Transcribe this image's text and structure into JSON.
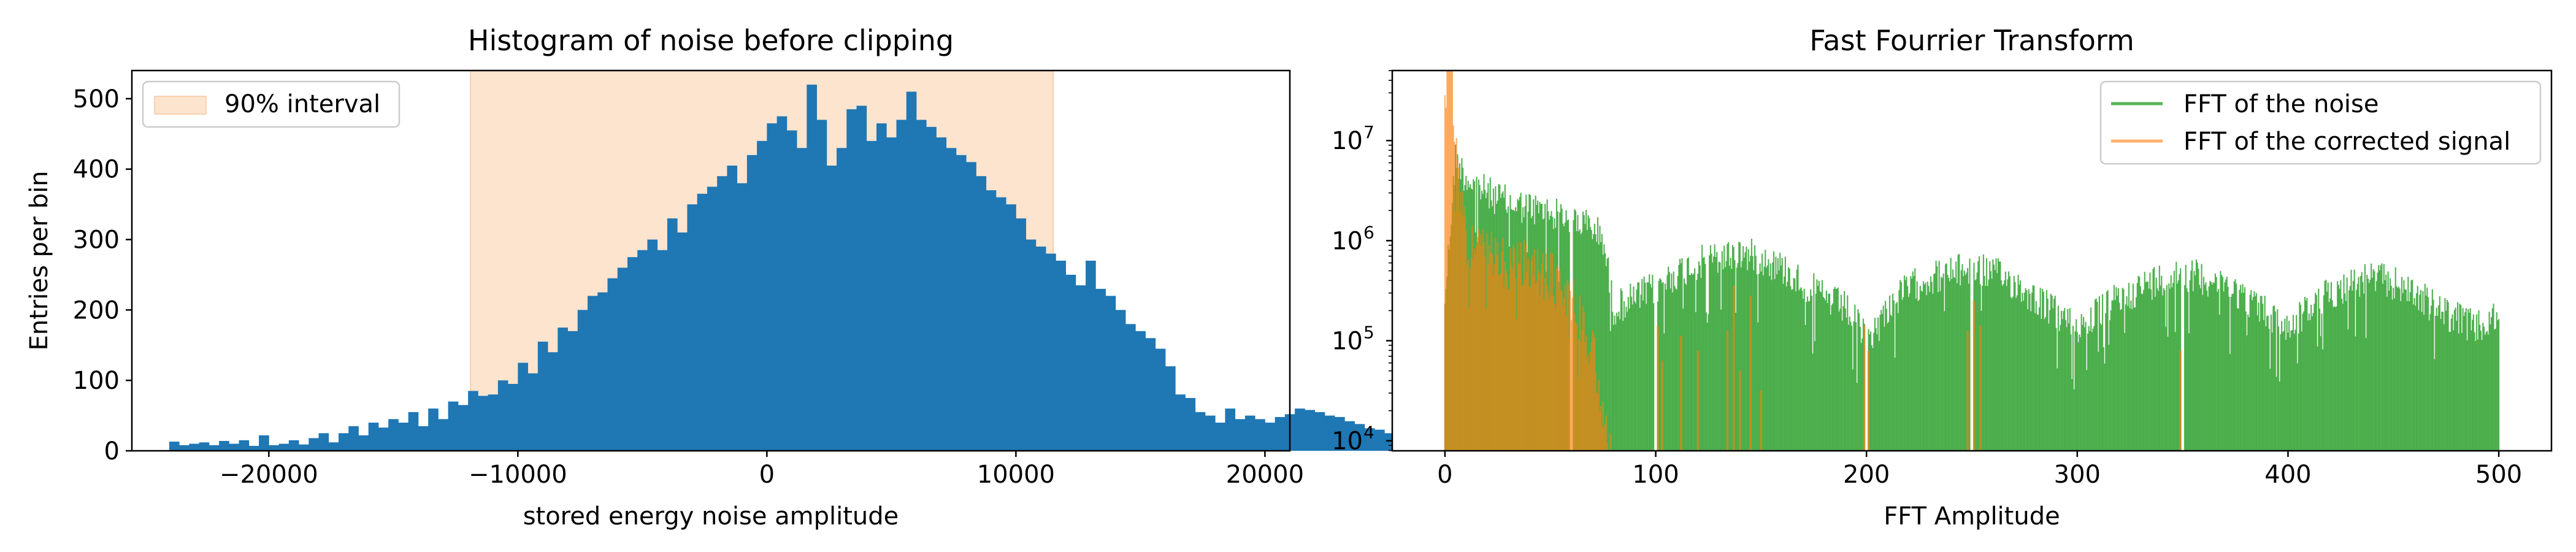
{
  "chart_data": [
    {
      "type": "bar",
      "title": "Histogram of noise before clipping",
      "xlabel": "stored energy noise amplitude",
      "ylabel": "Entries per bin",
      "xlim": [
        -25500,
        21000
      ],
      "ylim": [
        0,
        540
      ],
      "xticks": [
        -20000,
        -10000,
        0,
        10000,
        20000
      ],
      "xtick_labels": [
        "−20000",
        "−10000",
        "0",
        "10000",
        "20000"
      ],
      "yticks": [
        0,
        100,
        200,
        300,
        400,
        500
      ],
      "ytick_labels": [
        "0",
        "100",
        "200",
        "300",
        "400",
        "500"
      ],
      "bin_start": -24000,
      "bin_width": 400,
      "counts": [
        13,
        8,
        10,
        12,
        8,
        14,
        10,
        15,
        7,
        22,
        8,
        10,
        15,
        9,
        18,
        25,
        12,
        25,
        35,
        22,
        40,
        33,
        45,
        40,
        55,
        35,
        60,
        45,
        70,
        65,
        85,
        78,
        80,
        100,
        95,
        125,
        110,
        155,
        140,
        175,
        170,
        200,
        220,
        225,
        245,
        260,
        275,
        285,
        300,
        285,
        330,
        310,
        350,
        365,
        375,
        390,
        405,
        380,
        420,
        440,
        465,
        475,
        455,
        430,
        520,
        470,
        405,
        430,
        485,
        490,
        440,
        465,
        445,
        470,
        510,
        470,
        460,
        445,
        430,
        420,
        410,
        390,
        370,
        360,
        350,
        330,
        300,
        290,
        280,
        270,
        250,
        235,
        270,
        230,
        220,
        200,
        180,
        170,
        160,
        145,
        120,
        80,
        75,
        55,
        50,
        40,
        60,
        45,
        50,
        45,
        40,
        48,
        52,
        60,
        58,
        55,
        50,
        48,
        42,
        38,
        32,
        30,
        25,
        22,
        20,
        18,
        20,
        15,
        12,
        10,
        12,
        14,
        10,
        12,
        10,
        8,
        10,
        12,
        14,
        10,
        12,
        14,
        13
      ],
      "interval": {
        "x0": -11900,
        "x1": 11500,
        "color": "#fde4cf"
      },
      "bar_color": "#1f77b4",
      "legend": {
        "position": "upper-left",
        "entries": [
          "90% interval"
        ]
      }
    },
    {
      "type": "area",
      "title": "Fast Fourrier Transform",
      "xlabel": "FFT Amplitude",
      "ylabel": "",
      "scale": "log",
      "xlim": [
        -25,
        525
      ],
      "ylim_log10": [
        3.9,
        7.7
      ],
      "xticks": [
        0,
        100,
        200,
        300,
        400,
        500
      ],
      "xtick_labels": [
        "0",
        "100",
        "200",
        "300",
        "400",
        "500"
      ],
      "yticks_log10": [
        4,
        5,
        6,
        7
      ],
      "ytick_bases": [
        "10",
        "10",
        "10",
        "10"
      ],
      "ytick_exps": [
        "4",
        "5",
        "6",
        "7"
      ],
      "series": [
        {
          "name": "FFT of the noise",
          "color": "#2ca02c",
          "opacity": 0.8,
          "envelope_x": [
            0,
            5,
            10,
            20,
            30,
            40,
            50,
            60,
            70,
            75,
            80,
            90,
            100,
            110,
            120,
            130,
            140,
            150,
            160,
            170,
            180,
            190,
            200,
            205,
            210,
            220,
            230,
            240,
            250,
            260,
            270,
            280,
            290,
            300,
            310,
            320,
            330,
            340,
            350,
            360,
            370,
            380,
            390,
            400,
            410,
            420,
            430,
            440,
            450,
            460,
            470,
            480,
            490,
            500
          ],
          "envelope_log": [
            5.6,
            7.0,
            6.8,
            6.65,
            6.55,
            6.5,
            6.45,
            6.4,
            6.3,
            6.2,
            5.5,
            5.6,
            5.7,
            5.85,
            5.95,
            6.0,
            6.05,
            6.0,
            5.9,
            5.75,
            5.6,
            5.5,
            5.2,
            5.3,
            5.5,
            5.7,
            5.8,
            5.85,
            5.9,
            5.85,
            5.75,
            5.6,
            5.45,
            5.3,
            5.45,
            5.6,
            5.7,
            5.8,
            5.85,
            5.8,
            5.75,
            5.6,
            5.45,
            5.3,
            5.5,
            5.65,
            5.75,
            5.8,
            5.75,
            5.65,
            5.5,
            5.4,
            5.3,
            5.4
          ],
          "dips_x": [
            60,
            100,
            200,
            250,
            350
          ]
        },
        {
          "name": "FFT of the corrected signal",
          "color": "#ff7f0e",
          "opacity": 0.6,
          "envelope_x": [
            0,
            2,
            5,
            10,
            20,
            30,
            40,
            50,
            55,
            60,
            65,
            70,
            75,
            80
          ],
          "envelope_log": [
            7.6,
            8.5,
            7.2,
            6.3,
            6.1,
            6.05,
            6.0,
            5.9,
            5.8,
            5.7,
            5.5,
            5.2,
            4.6,
            3.9
          ],
          "spikes": [
            {
              "x": 101,
              "log": 5.15
            },
            {
              "x": 103,
              "log": 4.8
            },
            {
              "x": 112,
              "log": 5.05
            },
            {
              "x": 120,
              "log": 4.9
            },
            {
              "x": 134,
              "log": 5.1
            },
            {
              "x": 137,
              "log": 5.55
            },
            {
              "x": 140,
              "log": 4.7
            },
            {
              "x": 145,
              "log": 5.45
            },
            {
              "x": 150,
              "log": 4.5
            },
            {
              "x": 199,
              "log": 5.15
            },
            {
              "x": 201,
              "log": 4.9
            },
            {
              "x": 248,
              "log": 5.1
            },
            {
              "x": 251,
              "log": 5.4
            },
            {
              "x": 254,
              "log": 5.15
            },
            {
              "x": 349,
              "log": 4.9
            }
          ]
        }
      ],
      "legend": {
        "position": "upper-right"
      }
    }
  ]
}
